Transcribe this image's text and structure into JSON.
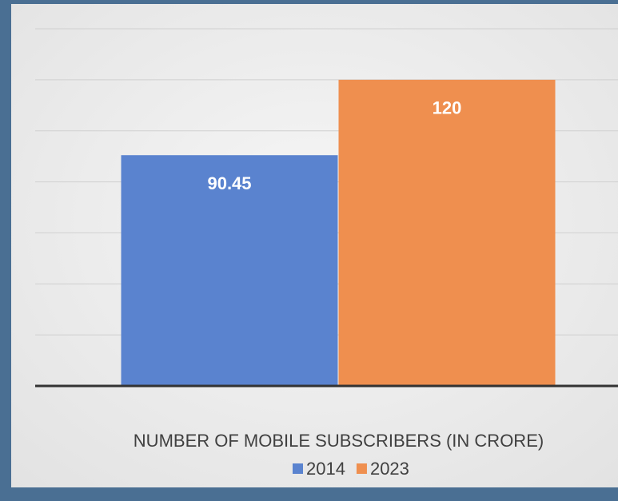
{
  "chart_data": {
    "type": "bar",
    "categories": [
      "NUMBER OF MOBILE SUBSCRIBERS (IN CRORE)"
    ],
    "series": [
      {
        "name": "2014",
        "color": "#5a83cf",
        "values": [
          90.45
        ]
      },
      {
        "name": "2023",
        "color": "#ef8f4f",
        "values": [
          120
        ]
      }
    ],
    "ylim": [
      0,
      140
    ],
    "yticks": [
      0,
      20,
      40,
      60,
      80,
      100,
      120,
      140
    ],
    "grid": true
  }
}
